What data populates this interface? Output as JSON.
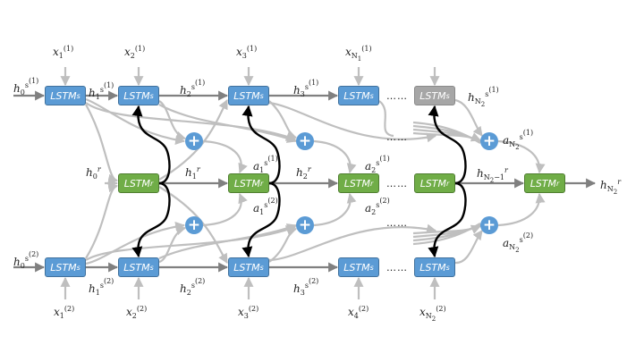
{
  "diagram": {
    "cell_labels": {
      "lstm": "LSTM",
      "sub_s": "s",
      "sub_r": "r"
    },
    "plus_symbol": "+",
    "ellipsis": "……",
    "colors": {
      "speaker_cell": "#5b9bd5",
      "relation_cell": "#70ad47",
      "faded_cell": "#a6a6a6",
      "arrow_grey": "#bfbfbf",
      "arrow_dark": "#808080",
      "arrow_black": "#000000"
    },
    "inputs_top": [
      {
        "v": "x",
        "i": "1",
        "k": "1"
      },
      {
        "v": "x",
        "i": "2",
        "k": "1"
      },
      {
        "v": "x",
        "i": "3",
        "k": "1"
      },
      {
        "v": "x",
        "i": "N",
        "ii": "1",
        "k": "1"
      }
    ],
    "inputs_bottom": [
      {
        "v": "x",
        "i": "1",
        "k": "2"
      },
      {
        "v": "x",
        "i": "2",
        "k": "2"
      },
      {
        "v": "x",
        "i": "3",
        "k": "2"
      },
      {
        "v": "x",
        "i": "4",
        "k": "2"
      },
      {
        "v": "x",
        "i": "N",
        "ii": "2",
        "k": "2"
      }
    ],
    "hidden_top": [
      {
        "v": "h",
        "i": "0",
        "k": "1"
      },
      {
        "v": "h",
        "i": "1",
        "k": "1"
      },
      {
        "v": "h",
        "i": "2",
        "k": "1"
      },
      {
        "v": "h",
        "i": "3",
        "k": "1"
      },
      {
        "v": "h",
        "i": "N",
        "ii": "2",
        "k": "1"
      }
    ],
    "hidden_bottom": [
      {
        "v": "h",
        "i": "0",
        "k": "2"
      },
      {
        "v": "h",
        "i": "1",
        "k": "2"
      },
      {
        "v": "h",
        "i": "2",
        "k": "2"
      },
      {
        "v": "h",
        "i": "3",
        "k": "2"
      }
    ],
    "hidden_r": [
      {
        "v": "h",
        "i": "0"
      },
      {
        "v": "h",
        "i": "1"
      },
      {
        "v": "h",
        "i": "2"
      },
      {
        "v": "h",
        "i": "N",
        "ii": "2",
        "tail": "−1"
      },
      {
        "v": "h",
        "i": "N",
        "ii": "2"
      }
    ],
    "attn_top": [
      {
        "v": "a",
        "i": "1",
        "k": "1"
      },
      {
        "v": "a",
        "i": "2",
        "k": "1"
      },
      {
        "v": "a",
        "i": "N",
        "ii": "2",
        "k": "1"
      }
    ],
    "attn_bottom": [
      {
        "v": "a",
        "i": "1",
        "k": "2"
      },
      {
        "v": "a",
        "i": "2",
        "k": "2"
      },
      {
        "v": "a",
        "i": "N",
        "ii": "2",
        "k": "2"
      }
    ]
  }
}
